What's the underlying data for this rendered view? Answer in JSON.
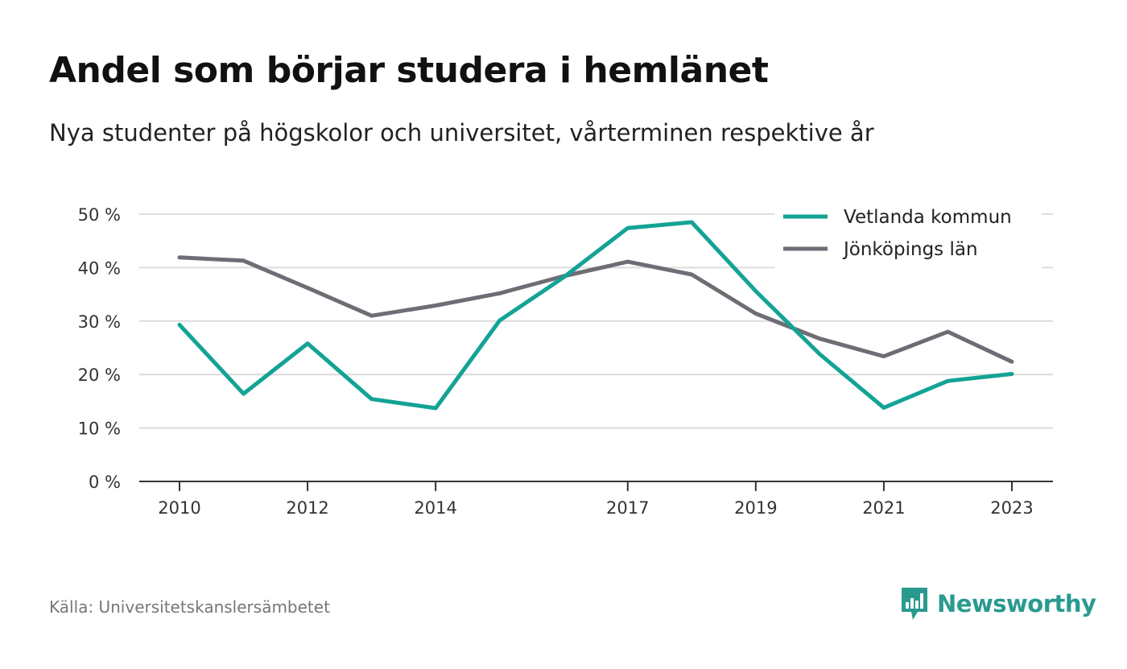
{
  "header": {
    "title": "Andel som börjar studera i hemlänet",
    "subtitle": "Nya studenter på högskolor och universitet, vårterminen respektive år"
  },
  "footer": {
    "source": "Källa: Universitetskanslersämbetet",
    "brand": "Newsworthy",
    "brand_icon": "newsworthy-logo-icon",
    "brand_color": "#2a9a90"
  },
  "chart_data": {
    "type": "line",
    "x": [
      2010,
      2011,
      2012,
      2013,
      2014,
      2015,
      2016,
      2017,
      2018,
      2019,
      2020,
      2021,
      2022,
      2023
    ],
    "x_tick_labels": [
      "2010",
      "2012",
      "2014",
      "2017",
      "2019",
      "2021",
      "2023"
    ],
    "y_tick_labels": [
      "0 %",
      "10 %",
      "20 %",
      "30 %",
      "40 %",
      "50 %"
    ],
    "ylim": [
      0,
      50
    ],
    "grid": true,
    "legend_position": "top-right",
    "series": [
      {
        "name": "Vetlanda kommun",
        "color": "#13a396",
        "values": [
          29.3,
          16.4,
          25.8,
          15.4,
          13.7,
          30.1,
          38.2,
          47.4,
          48.5,
          35.6,
          23.8,
          13.8,
          18.8,
          20.1
        ]
      },
      {
        "name": "Jönköpings län",
        "color": "#6e6d75",
        "values": [
          41.9,
          41.3,
          36.2,
          31.0,
          32.9,
          35.2,
          38.4,
          41.1,
          38.7,
          31.4,
          26.7,
          23.4,
          28.0,
          22.4
        ]
      }
    ]
  }
}
